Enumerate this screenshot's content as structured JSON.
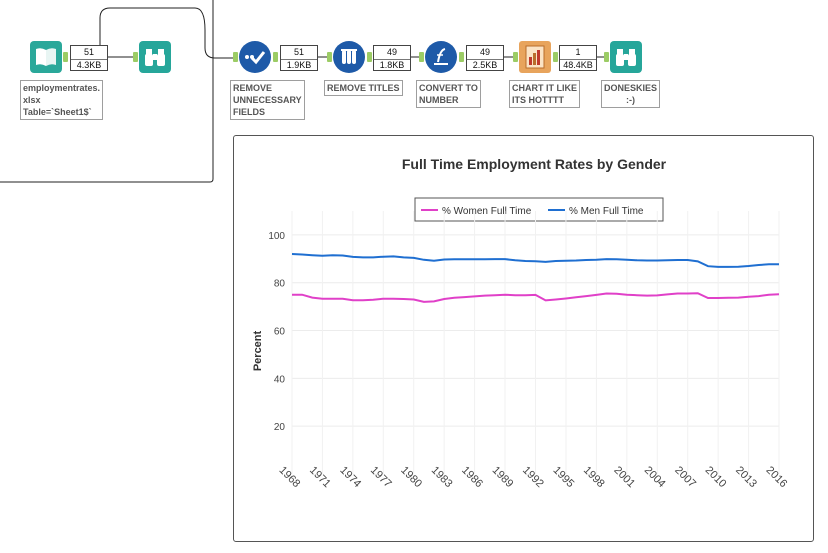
{
  "workflow": {
    "input_tool": {
      "icon": "book-icon",
      "label": "employmentrates.\nxlsx\nTable=`Sheet1$`",
      "records": "51",
      "size": "4.3KB"
    },
    "browse_tool_1": {
      "icon": "binoculars-icon"
    },
    "select_tool": {
      "icon": "checkmark-icon",
      "label": "REMOVE\nUNNECESSARY\nFIELDS",
      "records": "51",
      "size": "1.9KB"
    },
    "sample_tool": {
      "icon": "test-tubes-icon",
      "label": "REMOVE TITLES",
      "records": "49",
      "size": "1.8KB"
    },
    "formula_tool": {
      "icon": "formula-icon",
      "label": "CONVERT TO\nNUMBER",
      "records": "49",
      "size": "2.5KB"
    },
    "chart_tool": {
      "icon": "chart-icon",
      "label": "CHART IT LIKE\nITS HOTTTT",
      "records": "1",
      "size": "48.4KB"
    },
    "browse_tool_2": {
      "icon": "binoculars-icon",
      "label": "DONESKIES\n:-)"
    }
  },
  "colors": {
    "input_green": "#2aa89a",
    "browse_green": "#26a69a",
    "select_blue": "#1e5aa8",
    "formula_blue": "#1e5aa8",
    "chart_orange": "#e8a45c",
    "connector_green": "#9ccc65",
    "women_line": "#e040c8",
    "men_line": "#1f6fd1"
  },
  "chart_data": {
    "type": "line",
    "title": "Full Time Employment Rates by Gender",
    "xlabel": "",
    "ylabel": "Percent",
    "ylim": [
      0,
      110
    ],
    "yticks": [
      20,
      40,
      60,
      80,
      100
    ],
    "legend_position": "top-center",
    "grid": true,
    "x": [
      1968,
      1969,
      1970,
      1971,
      1972,
      1973,
      1974,
      1975,
      1976,
      1977,
      1978,
      1979,
      1980,
      1981,
      1982,
      1983,
      1984,
      1985,
      1986,
      1987,
      1988,
      1989,
      1990,
      1991,
      1992,
      1993,
      1994,
      1995,
      1996,
      1997,
      1998,
      1999,
      2000,
      2001,
      2002,
      2003,
      2004,
      2005,
      2006,
      2007,
      2008,
      2009,
      2010,
      2011,
      2012,
      2013,
      2014,
      2015,
      2016
    ],
    "xtick_labels": [
      "1968",
      "1971",
      "1974",
      "1977",
      "1980",
      "1983",
      "1986",
      "1989",
      "1992",
      "1995",
      "1998",
      "2001",
      "2004",
      "2007",
      "2010",
      "2013",
      "2016"
    ],
    "series": [
      {
        "name": "% Women Full Time",
        "color": "#e040c8",
        "values": [
          75,
          75,
          73.8,
          73.3,
          73.3,
          73.3,
          72.7,
          72.7,
          72.9,
          73.3,
          73.3,
          73.2,
          73.0,
          72.0,
          72.2,
          73.2,
          73.7,
          74.0,
          74.3,
          74.6,
          74.8,
          75.0,
          74.8,
          74.8,
          74.9,
          72.6,
          73.0,
          73.4,
          73.9,
          74.4,
          74.9,
          75.5,
          75.4,
          75.0,
          74.8,
          74.6,
          74.7,
          75.1,
          75.5,
          75.5,
          75.6,
          73.6,
          73.6,
          73.7,
          73.8,
          74.1,
          74.4,
          75.0,
          75.2
        ]
      },
      {
        "name": "% Men Full Time",
        "color": "#1f6fd1",
        "values": [
          92,
          91.8,
          91.5,
          91.3,
          91.5,
          91.4,
          90.8,
          90.6,
          90.6,
          90.9,
          91.0,
          90.6,
          90.4,
          89.6,
          89.2,
          89.7,
          89.8,
          89.8,
          89.8,
          89.8,
          89.9,
          89.9,
          89.4,
          89.1,
          89.0,
          88.7,
          89.1,
          89.2,
          89.3,
          89.5,
          89.6,
          89.9,
          89.8,
          89.6,
          89.4,
          89.3,
          89.3,
          89.4,
          89.5,
          89.5,
          88.9,
          86.9,
          86.6,
          86.6,
          86.7,
          87.0,
          87.4,
          87.7,
          87.7
        ]
      }
    ]
  }
}
